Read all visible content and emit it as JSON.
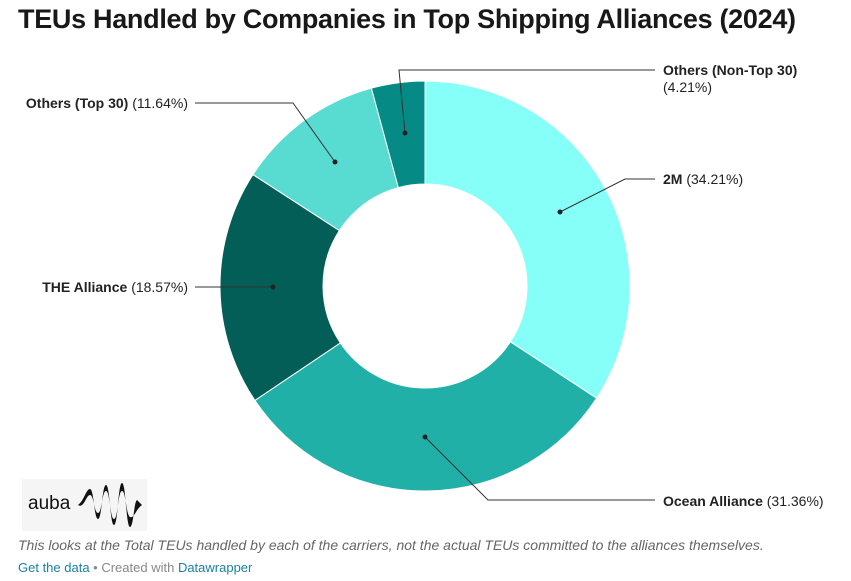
{
  "chart_data": {
    "type": "pie",
    "style": "donut",
    "title": "TEUs Handled by Companies in Top Shipping Alliances  (2024)",
    "slices": [
      {
        "label": "2M",
        "value": 34.21,
        "value_label": "(34.21%)",
        "color": "#87fff9"
      },
      {
        "label": "Ocean Alliance",
        "value": 31.36,
        "value_label": "(31.36%)",
        "color": "#20b0a8"
      },
      {
        "label": "THE Alliance",
        "value": 18.57,
        "value_label": "(18.57%)",
        "color": "#035e58"
      },
      {
        "label": "Others (Top 30)",
        "value": 11.64,
        "value_label": "(11.64%)",
        "color": "#58dcd2"
      },
      {
        "label": "Others (Non-Top 30)",
        "value": 4.21,
        "value_label": "(4.21%)",
        "color": "#058a85"
      }
    ]
  },
  "logo_text": "auba",
  "note": "This looks at the Total TEUs handled by each of the carriers, not the actual TEUs committed to the alliances themselves.",
  "footer": {
    "get_data": "Get the data",
    "sep": " • Created with ",
    "datawrapper": "Datawrapper"
  }
}
